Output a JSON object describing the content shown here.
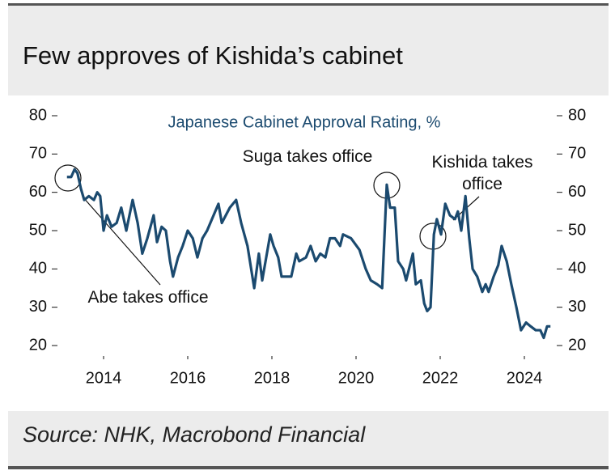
{
  "chart_data": {
    "type": "line",
    "title": "Few approves of Kishida’s cabinet",
    "subtitle": "Japanese Cabinet Approval Rating, %",
    "source": "Source: NHK, Macrobond Financial",
    "annotations": [
      "Suga takes office",
      "Kishida takes office",
      "Abe takes office"
    ],
    "xlim": [
      2013,
      2024.7
    ],
    "xticks": [
      2014,
      2016,
      2018,
      2020,
      2022,
      2024
    ],
    "ylim": [
      20,
      80
    ],
    "yticks": [
      20,
      30,
      40,
      50,
      60,
      70,
      80
    ],
    "y2lim": [
      20,
      80
    ],
    "y2ticks": [
      20,
      30,
      40,
      50,
      60,
      70,
      80
    ],
    "series": [
      {
        "color": "#1b4a6f",
        "x": [
          2013.13,
          2013.23,
          2013.31,
          2013.38,
          2013.46,
          2013.54,
          2013.65,
          2013.77,
          2013.85,
          2013.92,
          2014.0,
          2014.08,
          2014.19,
          2014.31,
          2014.42,
          2014.54,
          2014.69,
          2014.81,
          2014.92,
          2015.04,
          2015.19,
          2015.27,
          2015.38,
          2015.48,
          2015.58,
          2015.65,
          2015.77,
          2015.88,
          2016.0,
          2016.12,
          2016.23,
          2016.35,
          2016.46,
          2016.73,
          2016.81,
          2017.0,
          2017.15,
          2017.27,
          2017.42,
          2017.58,
          2017.69,
          2017.77,
          2017.96,
          2018.04,
          2018.15,
          2018.23,
          2018.46,
          2018.58,
          2018.65,
          2018.81,
          2018.92,
          2019.04,
          2019.15,
          2019.27,
          2019.38,
          2019.5,
          2019.62,
          2019.69,
          2019.88,
          2020.08,
          2020.23,
          2020.35,
          2020.5,
          2020.62,
          2020.73,
          2020.81,
          2020.92,
          2021.0,
          2021.12,
          2021.19,
          2021.35,
          2021.42,
          2021.54,
          2021.62,
          2021.69,
          2021.77,
          2021.85,
          2021.92,
          2022.02,
          2022.12,
          2022.23,
          2022.35,
          2022.42,
          2022.5,
          2022.6,
          2022.69,
          2022.77,
          2022.88,
          2023.0,
          2023.08,
          2023.15,
          2023.27,
          2023.38,
          2023.46,
          2023.58,
          2023.69,
          2023.81,
          2023.92,
          2024.04,
          2024.15,
          2024.27,
          2024.38,
          2024.46,
          2024.54,
          2024.62
        ],
        "values": [
          64,
          64,
          66,
          65,
          61,
          58,
          59,
          58,
          60,
          59,
          50,
          54,
          51,
          52,
          56,
          50,
          58,
          52,
          44,
          48,
          54,
          47,
          51,
          50,
          42,
          38,
          43,
          46,
          50,
          48,
          43,
          48,
          50,
          57,
          52,
          56,
          58,
          52,
          46,
          35,
          44,
          37,
          49,
          46,
          43,
          38,
          38,
          44,
          42,
          43,
          46,
          42,
          44,
          43,
          48,
          48,
          46,
          49,
          48,
          45,
          40,
          37,
          36,
          35,
          62,
          56,
          56,
          42,
          40,
          37,
          44,
          36,
          37,
          31,
          29,
          30,
          49,
          53,
          49,
          57,
          54,
          53,
          55,
          50,
          59,
          48,
          40,
          38,
          34,
          36,
          34,
          38,
          41,
          46,
          42,
          36,
          30,
          24,
          26,
          25,
          24,
          24,
          22,
          25,
          25
        ]
      }
    ]
  }
}
